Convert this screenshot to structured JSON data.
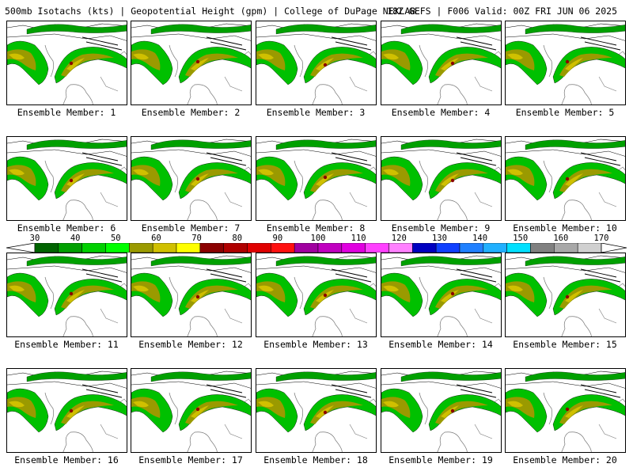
{
  "header": {
    "title": "500mb Isotachs (kts) | Geopotential Height (gpm) | College of DuPage NEXLAB",
    "run_info": "18Z GEFS | F006 Valid: 00Z FRI JUN 06 2025"
  },
  "members": [
    "Ensemble Member: 1",
    "Ensemble Member: 2",
    "Ensemble Member: 3",
    "Ensemble Member: 4",
    "Ensemble Member: 5",
    "Ensemble Member: 6",
    "Ensemble Member: 7",
    "Ensemble Member: 8",
    "Ensemble Member: 9",
    "Ensemble Member: 10",
    "Ensemble Member: 11",
    "Ensemble Member: 12",
    "Ensemble Member: 13",
    "Ensemble Member: 14",
    "Ensemble Member: 15",
    "Ensemble Member: 16",
    "Ensemble Member: 17",
    "Ensemble Member: 18",
    "Ensemble Member: 19",
    "Ensemble Member: 20"
  ],
  "colorbar": {
    "labels": [
      "30",
      "40",
      "50",
      "60",
      "70",
      "80",
      "90",
      "100",
      "110",
      "120",
      "130",
      "140",
      "150",
      "160",
      "170"
    ],
    "colors": [
      "#006400",
      "#00a000",
      "#00d000",
      "#00ff00",
      "#9a9a00",
      "#d0c000",
      "#ffff00",
      "#8b0000",
      "#b00000",
      "#e00000",
      "#ff1010",
      "#a000a0",
      "#c000c0",
      "#e000e0",
      "#ff40ff",
      "#ff80ff",
      "#0000c0",
      "#1040ff",
      "#2080ff",
      "#20b0ff",
      "#00e0ff",
      "#808080",
      "#a8a8a8",
      "#d0d0d0"
    ],
    "colors_meta": "jet shades ramp"
  }
}
